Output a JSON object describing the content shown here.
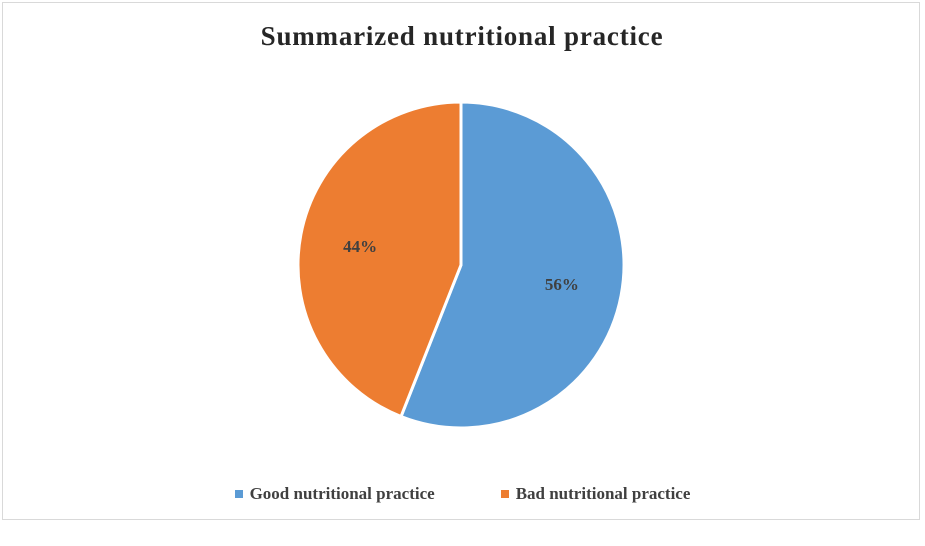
{
  "chart_data": {
    "type": "pie",
    "title": "Summarized nutritional practice",
    "categories": [
      "Good nutritional practice",
      "Bad nutritional practice"
    ],
    "values": [
      56,
      44
    ],
    "data_labels": [
      "56%",
      "44%"
    ],
    "colors": [
      "#5b9bd5",
      "#ed7d31"
    ],
    "legend": "bottom",
    "start_angle_deg": 0,
    "direction": "clockwise"
  }
}
